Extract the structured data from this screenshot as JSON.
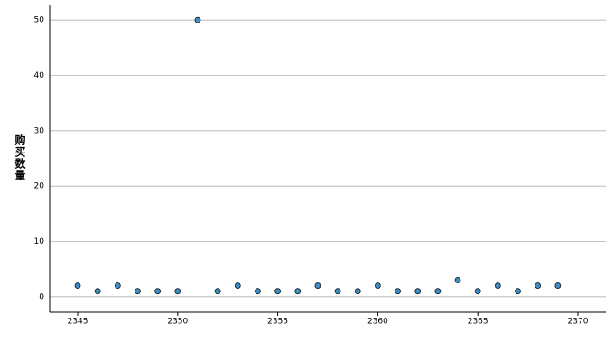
{
  "chart_data": {
    "type": "scatter",
    "y_label": "购买数量",
    "x": [
      2345,
      2346,
      2347,
      2348,
      2349,
      2350,
      2351,
      2352,
      2353,
      2354,
      2355,
      2356,
      2357,
      2358,
      2359,
      2360,
      2361,
      2362,
      2363,
      2364,
      2365,
      2366,
      2367,
      2368,
      2369
    ],
    "values": [
      2,
      1,
      2,
      1,
      1,
      1,
      50,
      1,
      2,
      1,
      1,
      1,
      2,
      1,
      1,
      2,
      1,
      1,
      1,
      3,
      1,
      2,
      1,
      2,
      2
    ],
    "color": "#3a8fc8",
    "xlim": [
      2343.6,
      2371.4
    ],
    "ylim": [
      -2.8,
      52.8
    ],
    "xticks": [
      2345,
      2350,
      2355,
      2360,
      2365,
      2370
    ],
    "yticks": [
      0,
      10,
      20,
      30,
      40,
      50
    ],
    "grid": true
  }
}
